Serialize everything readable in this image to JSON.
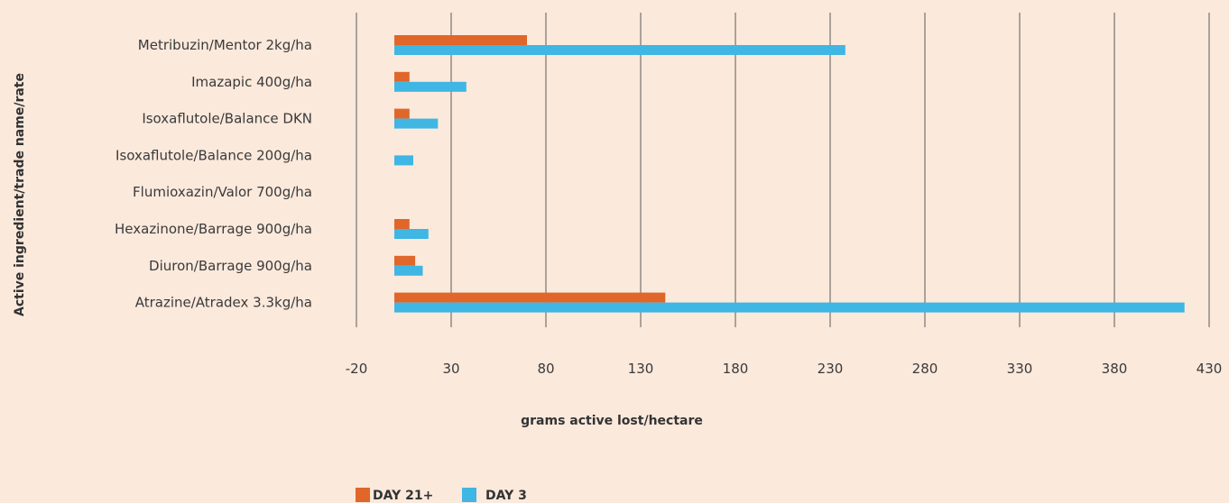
{
  "chart_data": {
    "type": "bar",
    "orientation": "horizontal",
    "xlabel": "grams active lost/hectare",
    "ylabel": "Active ingredient/trade name/rate",
    "xlim": [
      -20,
      430
    ],
    "xticks": [
      -20,
      30,
      80,
      130,
      180,
      230,
      280,
      330,
      380,
      430
    ],
    "grid": true,
    "legend_position": "bottom",
    "categories": [
      "Metribuzin/Mentor 2kg/ha",
      "Imazapic 400g/ha",
      "Isoxaflutole/Balance DKN",
      "Isoxaflutole/Balance 200g/ha",
      "Flumioxazin/Valor 700g/ha",
      "Hexazinone/Barrage 900g/ha",
      "Diuron/Barrage 900g/ha",
      "Atrazine/Atradex 3.3kg/ha"
    ],
    "series": [
      {
        "name": "DAY 21+",
        "color": "#e0662a",
        "values": [
          70,
          8,
          8,
          0,
          0,
          8,
          11,
          143
        ]
      },
      {
        "name": "DAY 3",
        "color": "#3fb6e3",
        "values": [
          238,
          38,
          23,
          10,
          0,
          18,
          15,
          417
        ]
      }
    ]
  }
}
